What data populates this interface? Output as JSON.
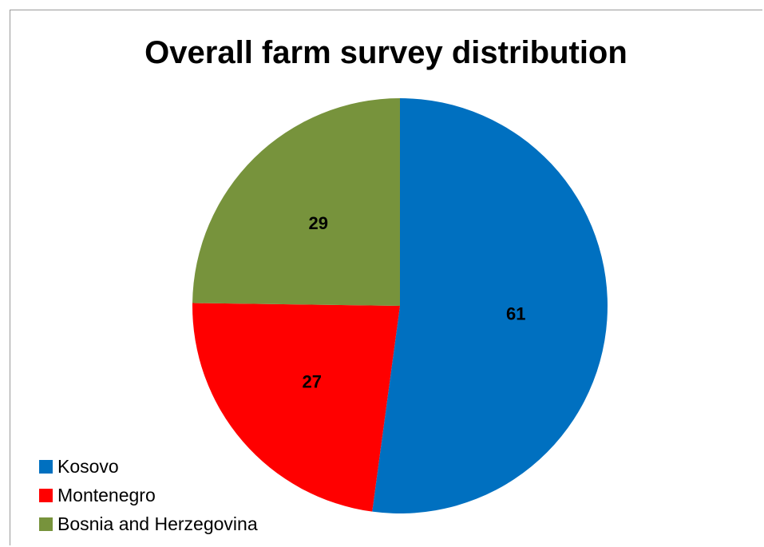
{
  "chart_data": {
    "type": "pie",
    "title": "Overall farm survey distribution",
    "categories": [
      "Kosovo",
      "Montenegro",
      "Bosnia and Herzegovina"
    ],
    "values": [
      61,
      27,
      29
    ],
    "colors": [
      "#0070C0",
      "#FF0000",
      "#77933C"
    ],
    "start_angle_deg": 0,
    "direction": "clockwise",
    "data_labels": [
      "61",
      "27",
      "29"
    ],
    "legend_position": "bottom-left"
  }
}
